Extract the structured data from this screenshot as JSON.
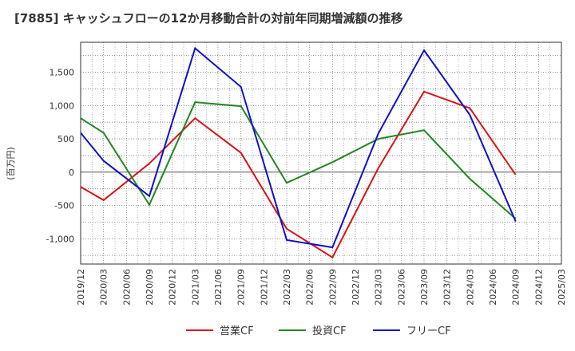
{
  "chart_data": {
    "type": "line",
    "title": "[7885]  キャッシュフローの12か月移動合計の対前年同期増減額の推移",
    "ylabel": "(百万円)",
    "xlabel": "",
    "ylim": [
      -1380,
      1950
    ],
    "yticks": [
      -1000,
      -500,
      0,
      500,
      1000,
      1500
    ],
    "ytick_labels": [
      "-1,000",
      "-500",
      "0",
      "500",
      "1,000",
      "1,500"
    ],
    "xticks": [
      "2019/12",
      "2020/03",
      "2020/06",
      "2020/09",
      "2020/12",
      "2021/03",
      "2021/06",
      "2021/09",
      "2021/12",
      "2022/03",
      "2022/06",
      "2022/09",
      "2022/12",
      "2023/03",
      "2023/06",
      "2023/09",
      "2023/12",
      "2024/03",
      "2024/06",
      "2024/09",
      "2024/12",
      "2025/03"
    ],
    "grid": true,
    "legend_position": "bottom",
    "series": [
      {
        "name": "営業CF",
        "color": "#dd1111",
        "x": [
          "2019/12",
          "2020/03",
          "2020/09",
          "2021/03",
          "2021/09",
          "2022/03",
          "2022/09",
          "2023/03",
          "2023/09",
          "2024/03",
          "2024/09"
        ],
        "values": [
          -220,
          -420,
          130,
          810,
          290,
          -850,
          -1280,
          60,
          1210,
          960,
          -40
        ]
      },
      {
        "name": "投資CF",
        "color": "#228822",
        "x": [
          "2019/12",
          "2020/03",
          "2020/09",
          "2021/03",
          "2021/09",
          "2022/03",
          "2022/09",
          "2023/03",
          "2023/09",
          "2024/03",
          "2024/09"
        ],
        "values": [
          810,
          590,
          -490,
          1050,
          990,
          -160,
          150,
          500,
          630,
          -100,
          -700
        ]
      },
      {
        "name": "フリーCF",
        "color": "#1111cc",
        "x": [
          "2019/12",
          "2020/03",
          "2020/09",
          "2021/03",
          "2021/09",
          "2022/03",
          "2022/09",
          "2023/03",
          "2023/09",
          "2024/03",
          "2024/09"
        ],
        "values": [
          590,
          170,
          -360,
          1860,
          1280,
          -1020,
          -1130,
          580,
          1830,
          860,
          -740
        ]
      }
    ]
  }
}
